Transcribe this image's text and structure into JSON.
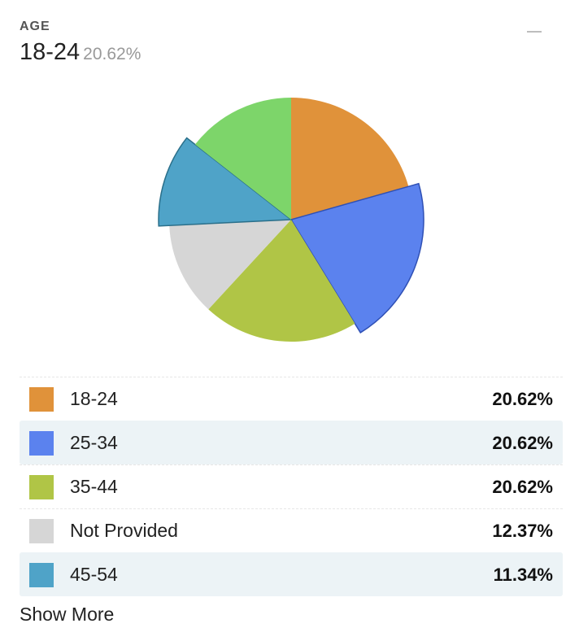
{
  "widget": {
    "title": "AGE",
    "selected_category": "18-24",
    "selected_percent": "20.62%",
    "show_more_label": "Show More"
  },
  "colors": {
    "18-24": "#e0923a",
    "25-34": "#5b82ee",
    "35-44": "#b0c546",
    "Not Provided": "#d6d6d6",
    "45-54": "#4fa3c8",
    "other": "#7dd56a"
  },
  "chart_data": {
    "type": "pie",
    "title": "AGE",
    "slices": [
      {
        "label": "18-24",
        "value": 20.62
      },
      {
        "label": "25-34",
        "value": 20.62
      },
      {
        "label": "35-44",
        "value": 20.62
      },
      {
        "label": "Not Provided",
        "value": 12.37
      },
      {
        "label": "45-54",
        "value": 11.34
      },
      {
        "label": "",
        "value": 14.43
      }
    ],
    "highlighted": [
      "25-34",
      "45-54"
    ]
  },
  "legend": [
    {
      "label": "18-24",
      "value": "20.62%"
    },
    {
      "label": "25-34",
      "value": "20.62%"
    },
    {
      "label": "35-44",
      "value": "20.62%"
    },
    {
      "label": "Not Provided",
      "value": "12.37%"
    },
    {
      "label": "45-54",
      "value": "11.34%"
    }
  ]
}
